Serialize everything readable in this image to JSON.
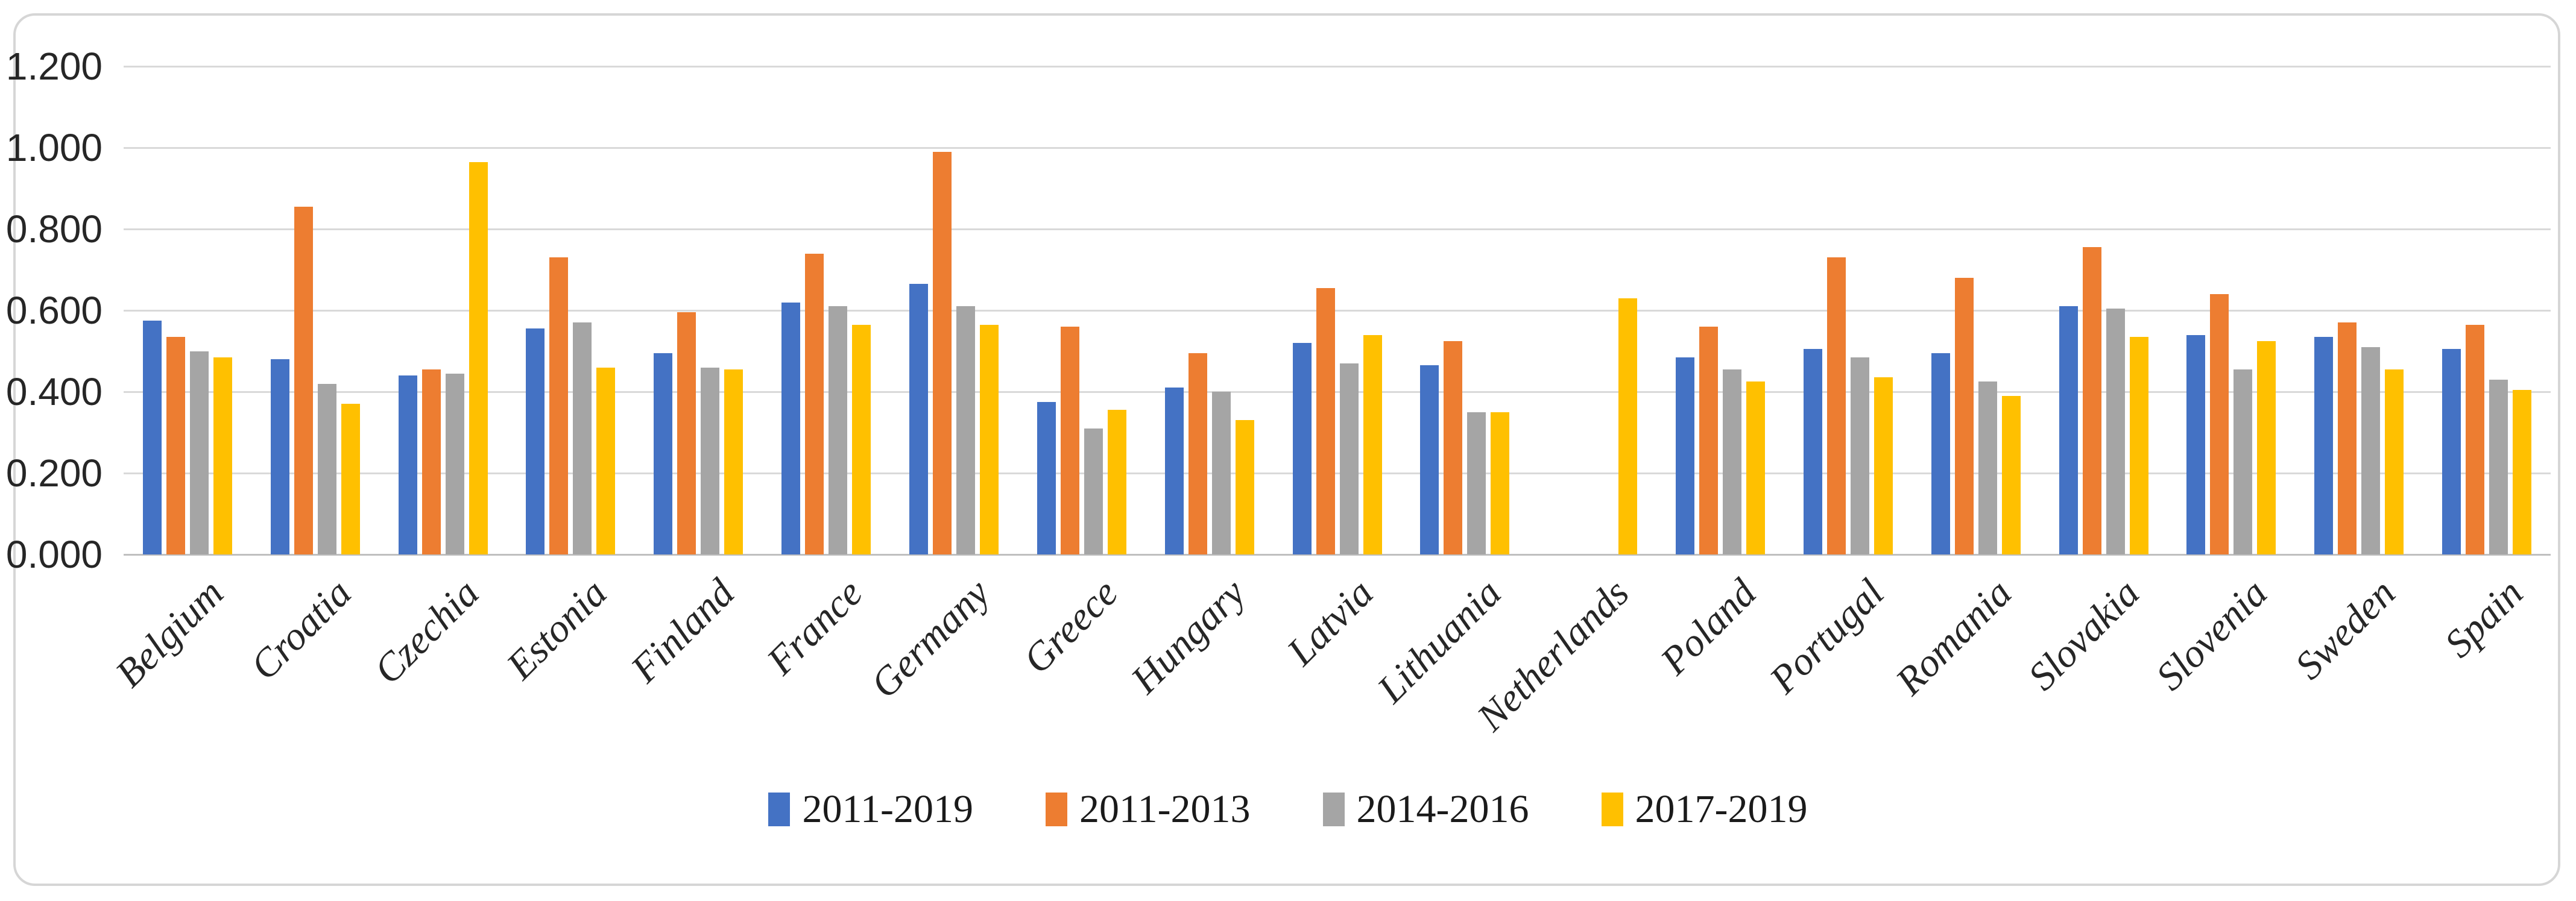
{
  "chart_data": {
    "type": "bar",
    "title": "",
    "categories": [
      "Belgium",
      "Croatia",
      "Czechia",
      "Estonia",
      "Finland",
      "France",
      "Germany",
      "Greece",
      "Hungary",
      "Latvia",
      "Lithuania",
      "Netherlands",
      "Poland",
      "Portugal",
      "Romania",
      "Slovakia",
      "Slovenia",
      "Sweden",
      "Spain"
    ],
    "series": [
      {
        "name": "2011-2019",
        "color": "#4472C4",
        "values": [
          0.575,
          0.48,
          0.44,
          0.555,
          0.495,
          0.62,
          0.665,
          0.375,
          0.41,
          0.52,
          0.465,
          0.0,
          0.485,
          0.505,
          0.495,
          0.61,
          0.54,
          0.535,
          0.505
        ]
      },
      {
        "name": "2011-2013",
        "color": "#ED7D31",
        "values": [
          0.535,
          0.855,
          0.455,
          0.73,
          0.595,
          0.74,
          0.99,
          0.56,
          0.495,
          0.655,
          0.525,
          0.0,
          0.56,
          0.73,
          0.68,
          0.755,
          0.64,
          0.57,
          0.565
        ]
      },
      {
        "name": "2014-2016",
        "color": "#A5A5A5",
        "values": [
          0.5,
          0.42,
          0.445,
          0.57,
          0.46,
          0.61,
          0.61,
          0.31,
          0.4,
          0.47,
          0.35,
          0.0,
          0.455,
          0.485,
          0.425,
          0.605,
          0.455,
          0.51,
          0.43
        ]
      },
      {
        "name": "2017-2019",
        "color": "#FFC000",
        "values": [
          0.485,
          0.37,
          0.965,
          0.46,
          0.455,
          0.565,
          0.565,
          0.355,
          0.33,
          0.54,
          0.35,
          0.63,
          0.425,
          0.435,
          0.39,
          0.535,
          0.525,
          0.455,
          0.405
        ]
      }
    ],
    "y_axis": {
      "min": 0,
      "max": 1.2,
      "step": 0.2,
      "tick_labels": [
        "0.000",
        "0.200",
        "0.400",
        "0.600",
        "0.800",
        "1.000",
        "1.200"
      ]
    },
    "grid": true,
    "legend_position": "bottom",
    "colors": {
      "gridline": "#D9D9D9",
      "axis_line": "#BFBFBF",
      "text": "#262626",
      "border": "#D6D6D6"
    }
  }
}
